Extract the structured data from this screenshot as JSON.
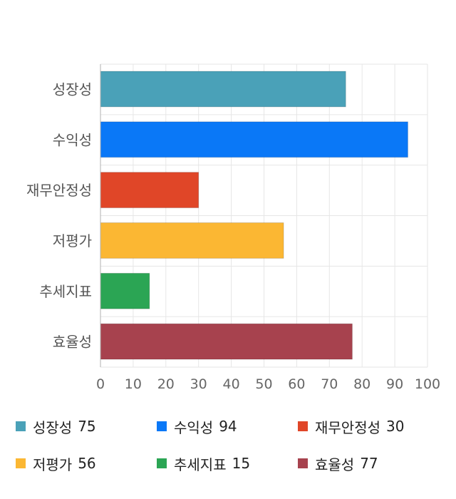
{
  "chart_data": {
    "type": "bar",
    "orientation": "horizontal",
    "categories": [
      "성장성",
      "수익성",
      "재무안정성",
      "저평가",
      "추세지표",
      "효율성"
    ],
    "values": [
      75,
      94,
      30,
      56,
      15,
      77
    ],
    "colors": [
      "#4aa1b8",
      "#0a78f7",
      "#e04628",
      "#fbb733",
      "#2ba554",
      "#a7424e"
    ],
    "xlim": [
      0,
      100
    ],
    "xticks": [
      0,
      10,
      20,
      30,
      40,
      50,
      60,
      70,
      80,
      90,
      100
    ],
    "grid": true,
    "legend_placement": "bottom"
  },
  "legend": [
    {
      "label": "성장성",
      "value": "75",
      "color": "#4aa1b8"
    },
    {
      "label": "수익성",
      "value": "94",
      "color": "#0a78f7"
    },
    {
      "label": "재무안정성",
      "value": "30",
      "color": "#e04628"
    },
    {
      "label": "저평가",
      "value": "56",
      "color": "#fbb733"
    },
    {
      "label": "추세지표",
      "value": "15",
      "color": "#2ba554"
    },
    {
      "label": "효율성",
      "value": "77",
      "color": "#a7424e"
    }
  ]
}
